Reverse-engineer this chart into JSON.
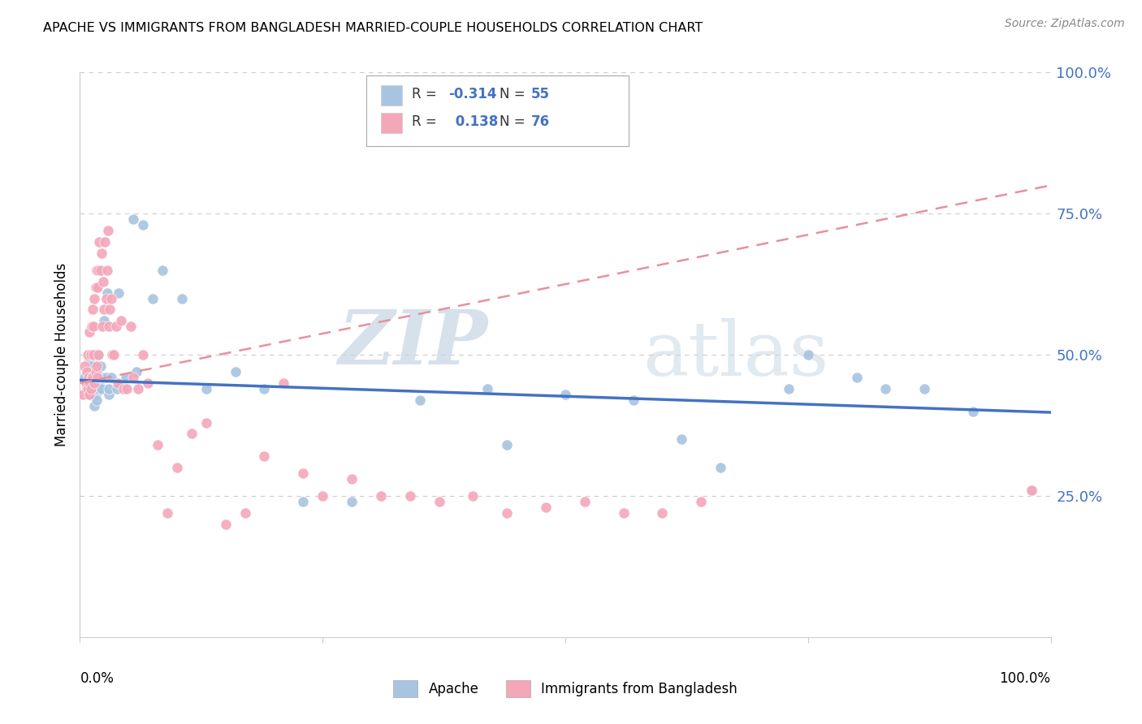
{
  "title": "APACHE VS IMMIGRANTS FROM BANGLADESH MARRIED-COUPLE HOUSEHOLDS CORRELATION CHART",
  "source": "Source: ZipAtlas.com",
  "ylabel": "Married-couple Households",
  "xlim": [
    0,
    1.0
  ],
  "ylim": [
    0,
    1.0
  ],
  "apache_R": -0.314,
  "apache_N": 55,
  "bangladesh_R": 0.138,
  "bangladesh_N": 76,
  "apache_color": "#a8c4e0",
  "apache_line_color": "#4472c4",
  "bangladesh_color": "#f4a7b9",
  "bangladesh_line_color": "#e8909f",
  "watermark_zip": "ZIP",
  "watermark_atlas": "atlas",
  "background_color": "#ffffff",
  "grid_color": "#cccccc",
  "apache_x": [
    0.005,
    0.007,
    0.009,
    0.01,
    0.01,
    0.012,
    0.012,
    0.013,
    0.015,
    0.015,
    0.016,
    0.017,
    0.017,
    0.018,
    0.018,
    0.019,
    0.02,
    0.021,
    0.022,
    0.023,
    0.025,
    0.027,
    0.028,
    0.03,
    0.03,
    0.032,
    0.038,
    0.04,
    0.043,
    0.047,
    0.055,
    0.058,
    0.065,
    0.075,
    0.085,
    0.105,
    0.13,
    0.16,
    0.19,
    0.23,
    0.28,
    0.35,
    0.42,
    0.44,
    0.5,
    0.57,
    0.62,
    0.66,
    0.73,
    0.75,
    0.8,
    0.83,
    0.87,
    0.92,
    0.98
  ],
  "apache_y": [
    0.46,
    0.44,
    0.47,
    0.49,
    0.43,
    0.48,
    0.44,
    0.46,
    0.41,
    0.45,
    0.43,
    0.47,
    0.42,
    0.46,
    0.5,
    0.44,
    0.45,
    0.48,
    0.44,
    0.46,
    0.56,
    0.46,
    0.61,
    0.43,
    0.44,
    0.46,
    0.44,
    0.61,
    0.45,
    0.46,
    0.74,
    0.47,
    0.73,
    0.6,
    0.65,
    0.6,
    0.44,
    0.47,
    0.44,
    0.24,
    0.24,
    0.42,
    0.44,
    0.34,
    0.43,
    0.42,
    0.35,
    0.3,
    0.44,
    0.5,
    0.46,
    0.44,
    0.44,
    0.4,
    0.26
  ],
  "bangladesh_x": [
    0.003,
    0.005,
    0.006,
    0.007,
    0.008,
    0.008,
    0.009,
    0.01,
    0.01,
    0.01,
    0.011,
    0.011,
    0.012,
    0.012,
    0.013,
    0.013,
    0.014,
    0.014,
    0.015,
    0.015,
    0.016,
    0.016,
    0.017,
    0.017,
    0.018,
    0.018,
    0.019,
    0.019,
    0.02,
    0.021,
    0.022,
    0.023,
    0.024,
    0.025,
    0.026,
    0.027,
    0.028,
    0.029,
    0.03,
    0.031,
    0.032,
    0.033,
    0.035,
    0.037,
    0.039,
    0.042,
    0.045,
    0.048,
    0.052,
    0.055,
    0.06,
    0.065,
    0.07,
    0.08,
    0.09,
    0.1,
    0.115,
    0.13,
    0.15,
    0.17,
    0.19,
    0.21,
    0.23,
    0.25,
    0.28,
    0.31,
    0.34,
    0.37,
    0.405,
    0.44,
    0.48,
    0.52,
    0.56,
    0.6,
    0.64,
    0.98
  ],
  "bangladesh_y": [
    0.43,
    0.48,
    0.45,
    0.47,
    0.44,
    0.5,
    0.46,
    0.54,
    0.45,
    0.43,
    0.5,
    0.44,
    0.55,
    0.46,
    0.58,
    0.46,
    0.5,
    0.55,
    0.6,
    0.45,
    0.62,
    0.47,
    0.65,
    0.48,
    0.62,
    0.46,
    0.65,
    0.5,
    0.7,
    0.65,
    0.68,
    0.55,
    0.63,
    0.58,
    0.7,
    0.6,
    0.65,
    0.72,
    0.55,
    0.58,
    0.6,
    0.5,
    0.5,
    0.55,
    0.45,
    0.56,
    0.44,
    0.44,
    0.55,
    0.46,
    0.44,
    0.5,
    0.45,
    0.34,
    0.22,
    0.3,
    0.36,
    0.38,
    0.2,
    0.22,
    0.32,
    0.45,
    0.29,
    0.25,
    0.28,
    0.25,
    0.25,
    0.24,
    0.25,
    0.22,
    0.23,
    0.24,
    0.22,
    0.22,
    0.24,
    0.26
  ]
}
